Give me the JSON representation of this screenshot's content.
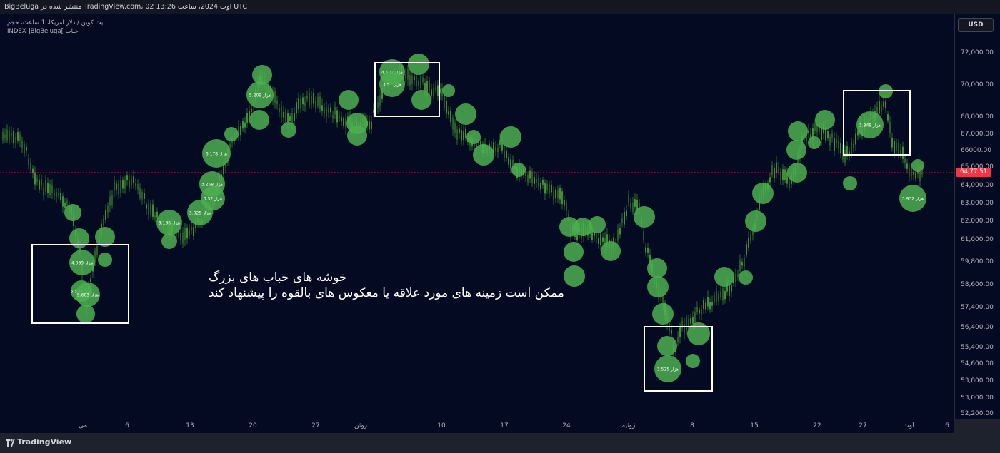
{
  "header": {
    "publish_text": "BigBeluga منتشر شده در TradingView.com، 02 اوت 2024، ساعت 13:26 UTC"
  },
  "legend": {
    "symbol_line": "بیت کوین / دلار آمریکا، 1 ساعت، حجم",
    "indicator_line": "INDEX ]BigBeluga[ حباب"
  },
  "price_axis": {
    "currency_button": "USD",
    "ticks": [
      "72,000.00",
      "70,000.00",
      "68,000.00",
      "67,000.00",
      "66000.00",
      "65,000.00",
      "64,000.00",
      "63,000.00",
      "62,000.00",
      "61,000.00",
      "59,800.00",
      "58,600.00",
      "57,400.00",
      "56,400.00",
      "55,400.00",
      "54,600.00",
      "53,800.00",
      "53,000.00",
      "52,200.00"
    ],
    "current_price_label": "64,77.51"
  },
  "time_axis": {
    "labels": [
      "می",
      "6",
      "13",
      "20",
      "27",
      "ژوئن",
      "10",
      "17",
      "24",
      "ژوئیه",
      "8",
      "15",
      "22",
      "27",
      "اوت",
      "6"
    ]
  },
  "annotation": {
    "line1": "خوشه های حباب های بزرگ",
    "line2": "ممکن است زمینه های مورد علاقه یا معکوس های بالقوه را پیشنهاد کند"
  },
  "bubble_labels": [
    "4.039 هزار",
    "5.534 هزار",
    "5.603 هزار",
    "3.136 هزار",
    "3.025 هزار",
    "3.258 هزار",
    "3.52 هزار",
    "6.178 هزار",
    "5.209 هزار",
    "4.502 هزار",
    "3.51 هزار",
    "3.525 هزار",
    "3.848 هزار",
    "3.932 هزار"
  ],
  "footer": {
    "brand": "TradingView"
  },
  "colors": {
    "chart_bg": "#030a22",
    "bubble": "#4caf50",
    "candle": "#2e6b2a",
    "price_line": "#f23645",
    "box": "#ffffff"
  }
}
